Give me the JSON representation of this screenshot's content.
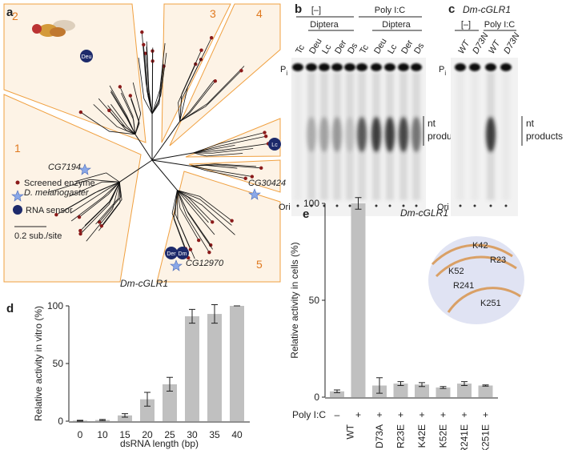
{
  "panel_a": {
    "letter": "a",
    "clades": [
      "1",
      "2",
      "3",
      "4",
      "5"
    ],
    "sensors": [
      "Deu",
      "Lc",
      "Der",
      "Dm"
    ],
    "genes": [
      "CG7194",
      "CG30424",
      "CG12970"
    ],
    "legend": [
      "Screened enzyme",
      "D. melanogaster",
      "RNA sensor"
    ],
    "scale": "0.2 sub./site"
  },
  "panel_b": {
    "letter": "b",
    "groups": [
      "[–]",
      "Poly I:C"
    ],
    "subgroup": "Diptera",
    "lanes": [
      "Tc",
      "Deu",
      "Lc",
      "Der",
      "Ds"
    ],
    "pi": {
      "main": "P",
      "sub": "i"
    },
    "products": [
      "nt",
      "products"
    ],
    "ori": "Ori"
  },
  "panel_c": {
    "letter": "c",
    "title": "Dm-cGLR1",
    "groups": [
      "[–]",
      "Poly I:C"
    ],
    "lanes": [
      "WT",
      "D73N",
      "WT",
      "D73N"
    ]
  },
  "chart_data": [
    {
      "type": "bar",
      "letter": "d",
      "title": "Dm-cGLR1",
      "x_label": "dsRNA length (bp)",
      "y_label": "Relative activity in vitro (%)",
      "categories": [
        "0",
        "10",
        "15",
        "20",
        "25",
        "30",
        "35",
        "40"
      ],
      "values": [
        0.5,
        1,
        5,
        19,
        32,
        91,
        93,
        100
      ],
      "errors": [
        0.3,
        0.5,
        1.5,
        6,
        6,
        6,
        8,
        0
      ],
      "color": "#c0c0c0",
      "ylim": [
        0,
        100
      ],
      "yticks": [
        0,
        50,
        100
      ]
    },
    {
      "type": "bar",
      "letter": "e",
      "title": "Dm-cGLR1",
      "y_label": "Relative activity in cells (%)",
      "condition_label": "Poly I:C",
      "conditions": [
        "–",
        "+",
        "+",
        "+",
        "+",
        "+",
        "+",
        "+"
      ],
      "categories": [
        null,
        "WT",
        "D73A",
        "R23E",
        "K42E",
        "K52E",
        "R241E",
        "K251E"
      ],
      "values": [
        3,
        100,
        6,
        7,
        6.5,
        5,
        7,
        6
      ],
      "errors": [
        0.7,
        3,
        4,
        1,
        1,
        0.5,
        1,
        0.3
      ],
      "color": "#c0c0c0",
      "ylim": [
        0,
        100
      ],
      "yticks": [
        0,
        50,
        100
      ],
      "annotations": [
        "K42",
        "R23",
        "K52",
        "R241",
        "K251"
      ]
    }
  ]
}
